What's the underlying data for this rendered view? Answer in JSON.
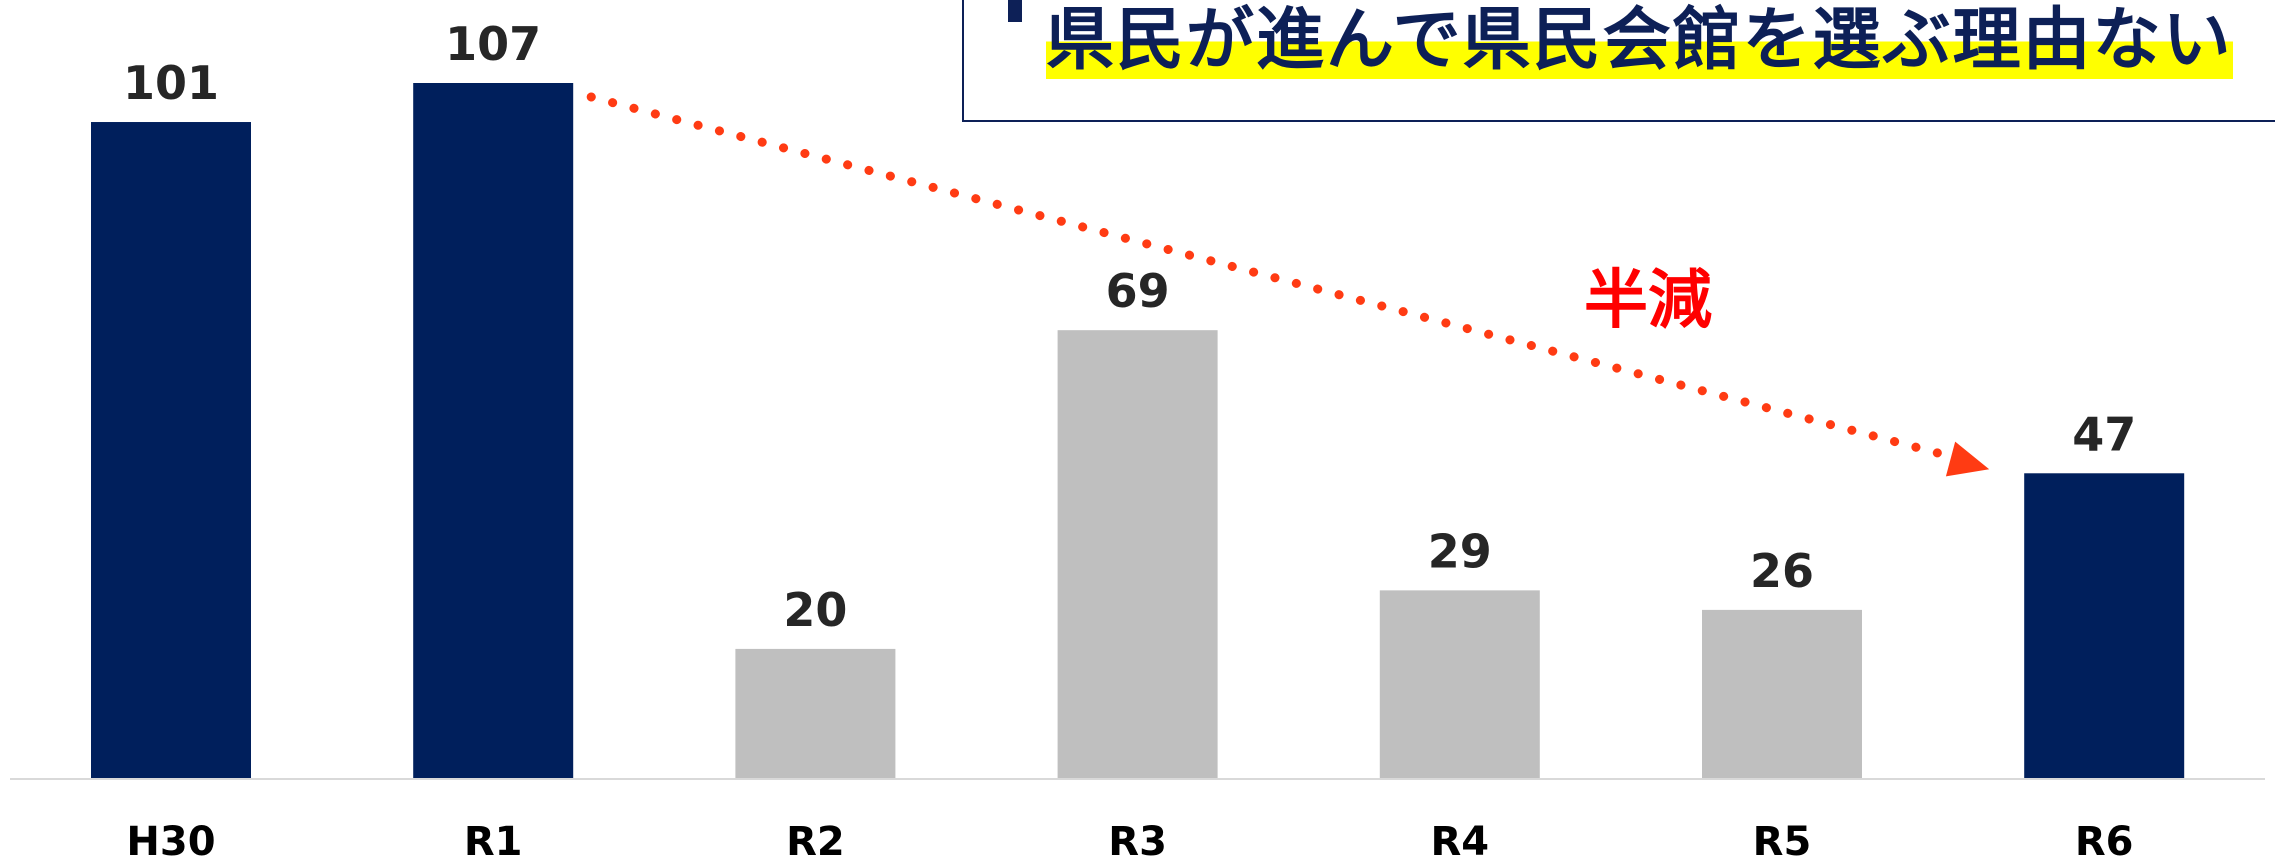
{
  "callout": {
    "text": "県民が進んで県民会館を選ぶ理由ない"
  },
  "annotation": {
    "text": "半減",
    "color": "#ff0000",
    "arrow_color": "#ff3b13"
  },
  "colors": {
    "highlight_bar": "#001f5c",
    "muted_bar": "#bfbfbf",
    "axis": "#d9d9d9"
  },
  "chart_data": {
    "type": "bar",
    "categories": [
      "H30",
      "R1",
      "R2",
      "R3",
      "R4",
      "R5",
      "R6"
    ],
    "values": [
      101,
      107,
      20,
      69,
      29,
      26,
      47
    ],
    "highlighted": [
      true,
      true,
      false,
      false,
      false,
      false,
      true
    ],
    "ylim": [
      0,
      107
    ],
    "grid": false,
    "legend": "none",
    "title": "",
    "xlabel": "",
    "ylabel": ""
  }
}
